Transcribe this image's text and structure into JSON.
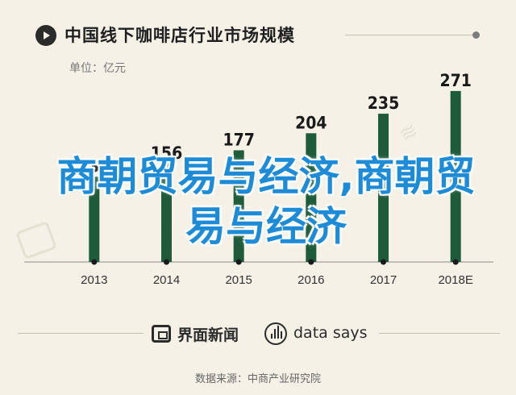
{
  "header": {
    "title": "中国线下咖啡店行业市场规模",
    "unit": "单位：亿元"
  },
  "chart_data": {
    "type": "bar",
    "categories": [
      "2013",
      "2014",
      "2015",
      "2016",
      "2017",
      "2018E"
    ],
    "values": [
      135,
      156,
      177,
      204,
      235,
      271
    ],
    "title": "中国线下咖啡店行业市场规模",
    "xlabel": "",
    "ylabel": "单位：亿元",
    "ylim": [
      0,
      290
    ],
    "bar_color": "#1d5b3b",
    "grid": false,
    "legend": "none"
  },
  "overlay_text": "商朝贸易与经济,商朝贸易与经济",
  "footer": {
    "brand1": "界面新闻",
    "brand2": "data says",
    "source": "数据来源：中商产业研究院"
  }
}
